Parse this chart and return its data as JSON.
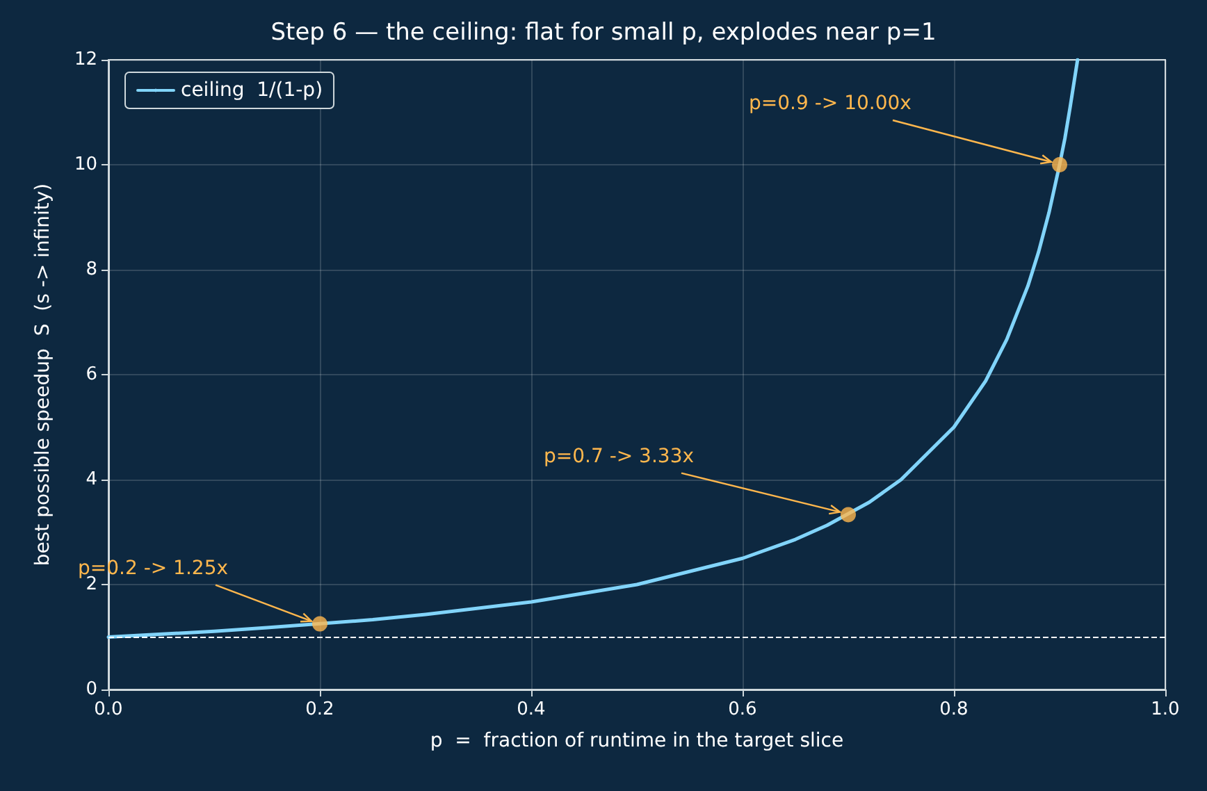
{
  "chart_data": {
    "type": "line",
    "title": "Step 6 — the ceiling: flat for small p, explodes near p=1",
    "xlabel": "p  =  fraction of runtime in the target slice",
    "ylabel": "best possible speedup  S  (s -> infinity)",
    "series": [
      {
        "name": "ceiling  1/(1-p)",
        "color": "#81d4fa",
        "x": [
          0,
          0.1,
          0.15,
          0.25,
          0.3,
          0.4,
          0.5,
          0.6,
          0.65,
          0.68,
          0.72,
          0.75,
          0.8,
          0.83,
          0.85,
          0.87,
          0.88,
          0.89,
          0.9,
          0.905,
          0.91,
          0.917
        ],
        "values": [
          1,
          1.11,
          1.18,
          1.33,
          1.43,
          1.67,
          2,
          2.5,
          2.86,
          3.13,
          3.57,
          4,
          5,
          5.88,
          6.67,
          7.69,
          8.33,
          9.09,
          10,
          10.5,
          11.1,
          12
        ],
        "marker": "none"
      },
      {
        "type": "scatter",
        "color": "#ffb74d",
        "x": [
          0.2,
          0.7,
          0.9
        ],
        "values": [
          1.25,
          3.33,
          10
        ],
        "marker": "circle"
      }
    ],
    "annotations": [
      {
        "text": "p=0.2 -> 1.25x",
        "x": 0.2,
        "y": 1.25
      },
      {
        "text": "p=0.7 -> 3.33x",
        "x": 0.7,
        "y": 3.33
      },
      {
        "text": "p=0.9 -> 10.00x",
        "x": 0.9,
        "y": 10
      }
    ],
    "ref_lines": [
      {
        "axis": "y",
        "value": 1,
        "color": "#ffffff",
        "line_style": "dashed"
      }
    ],
    "xlim": [
      0,
      1
    ],
    "xticks": [
      {
        "value": 0,
        "label": "0.0"
      },
      0.2,
      0.4,
      0.6,
      0.8,
      {
        "value": 1,
        "label": "1.0"
      }
    ],
    "ylim": [
      0,
      12
    ],
    "yticks": [
      0,
      2,
      4,
      6,
      8,
      10,
      12
    ],
    "grid": true,
    "legend": "top left"
  }
}
